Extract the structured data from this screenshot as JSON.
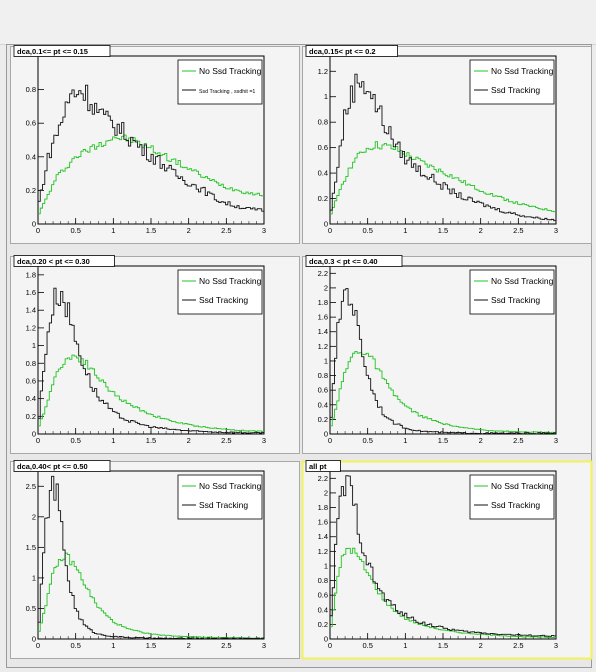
{
  "colors": {
    "green": "#22c422",
    "black": "#111111",
    "highlight": "#f2f25a"
  },
  "chart_data": [
    {
      "type": "line",
      "title": "dca,0.1<= pt <= 0.15",
      "xlim": [
        0,
        3
      ],
      "ylim": [
        0,
        1.0
      ],
      "xticks": [
        "0",
        "0.5",
        "1",
        "1.5",
        "2",
        "2.5",
        "3"
      ],
      "yticks": [
        "0.2",
        "0.4",
        "0.6",
        "0.8"
      ],
      "ytick_values": [
        0.2,
        0.4,
        0.6,
        0.8
      ],
      "legend": {
        "position": "top-right"
      },
      "series": [
        {
          "name": "No Ssd Tracking",
          "color": "green",
          "x": [
            0.0,
            0.25,
            0.5,
            0.75,
            1.0,
            1.25,
            1.5,
            1.75,
            2.0,
            2.25,
            2.5,
            2.75,
            3.0
          ],
          "y": [
            0.05,
            0.28,
            0.4,
            0.46,
            0.52,
            0.5,
            0.45,
            0.39,
            0.33,
            0.27,
            0.22,
            0.19,
            0.17
          ]
        },
        {
          "name": "Ssd Tracking , ssdhit =1",
          "color": "black",
          "x": [
            0.0,
            0.15,
            0.3,
            0.45,
            0.6,
            0.75,
            0.9,
            1.05,
            1.2,
            1.4,
            1.6,
            1.8,
            2.0,
            2.2,
            2.4,
            2.6,
            2.8,
            3.0
          ],
          "y": [
            0.1,
            0.42,
            0.6,
            0.78,
            0.8,
            0.7,
            0.62,
            0.58,
            0.52,
            0.44,
            0.38,
            0.3,
            0.25,
            0.2,
            0.14,
            0.11,
            0.09,
            0.08
          ]
        }
      ]
    },
    {
      "type": "line",
      "title": "dca,0.15< pt <= 0.2",
      "xlim": [
        0,
        3
      ],
      "ylim": [
        0,
        1.32
      ],
      "xticks": [
        "0",
        "0.5",
        "1",
        "1.5",
        "2",
        "2.5",
        "3"
      ],
      "yticks": [
        "0.2",
        "0.4",
        "0.6",
        "0.8",
        "1",
        "1.2"
      ],
      "ytick_values": [
        0.2,
        0.4,
        0.6,
        0.8,
        1.0,
        1.2
      ],
      "legend": {
        "position": "top-right"
      },
      "series": [
        {
          "name": "No Ssd Tracking",
          "color": "green",
          "x": [
            0.0,
            0.15,
            0.3,
            0.45,
            0.6,
            0.75,
            0.9,
            1.1,
            1.3,
            1.6,
            1.9,
            2.2,
            2.5,
            2.8,
            3.0
          ],
          "y": [
            0.05,
            0.3,
            0.48,
            0.58,
            0.62,
            0.61,
            0.58,
            0.52,
            0.46,
            0.38,
            0.29,
            0.22,
            0.16,
            0.12,
            0.1
          ]
        },
        {
          "name": "Ssd Tracking",
          "color": "black",
          "x": [
            0.0,
            0.1,
            0.2,
            0.3,
            0.4,
            0.5,
            0.6,
            0.7,
            0.8,
            0.9,
            1.0,
            1.2,
            1.4,
            1.6,
            1.8,
            2.0,
            2.3,
            2.6,
            3.0
          ],
          "y": [
            0.05,
            0.45,
            0.85,
            1.05,
            1.15,
            1.08,
            0.95,
            0.82,
            0.7,
            0.6,
            0.52,
            0.42,
            0.34,
            0.26,
            0.2,
            0.16,
            0.1,
            0.06,
            0.03
          ]
        }
      ]
    },
    {
      "type": "line",
      "title": "dca,0.20 < pt <= 0.30",
      "xlim": [
        0,
        3
      ],
      "ylim": [
        0,
        1.9
      ],
      "xticks": [
        "0",
        "0.5",
        "1",
        "1.5",
        "2",
        "2.5",
        "3"
      ],
      "yticks": [
        "0.2",
        "0.4",
        "0.6",
        "0.8",
        "1",
        "1.2",
        "1.4",
        "1.6",
        "1.8"
      ],
      "ytick_values": [
        0.2,
        0.4,
        0.6,
        0.8,
        1.0,
        1.2,
        1.4,
        1.6,
        1.8
      ],
      "legend": {
        "position": "top-right"
      },
      "series": [
        {
          "name": "No Ssd Tracking",
          "color": "green",
          "x": [
            0.0,
            0.1,
            0.2,
            0.3,
            0.4,
            0.5,
            0.6,
            0.7,
            0.8,
            1.0,
            1.2,
            1.5,
            1.8,
            2.1,
            2.4,
            2.7,
            3.0
          ],
          "y": [
            0.05,
            0.3,
            0.58,
            0.78,
            0.86,
            0.88,
            0.84,
            0.75,
            0.64,
            0.46,
            0.34,
            0.22,
            0.14,
            0.09,
            0.06,
            0.04,
            0.03
          ]
        },
        {
          "name": "Ssd Tracking",
          "color": "black",
          "x": [
            0.0,
            0.05,
            0.1,
            0.15,
            0.2,
            0.25,
            0.3,
            0.35,
            0.4,
            0.5,
            0.6,
            0.7,
            0.8,
            1.0,
            1.2,
            1.5,
            1.8,
            2.1,
            2.5,
            3.0
          ],
          "y": [
            0.05,
            0.5,
            0.95,
            1.25,
            1.45,
            1.58,
            1.6,
            1.52,
            1.38,
            1.08,
            0.8,
            0.58,
            0.42,
            0.24,
            0.15,
            0.08,
            0.05,
            0.03,
            0.02,
            0.01
          ]
        }
      ]
    },
    {
      "type": "line",
      "title": "dca,0.3 < pt <= 0.40",
      "xlim": [
        0,
        3
      ],
      "ylim": [
        0,
        2.3
      ],
      "xticks": [
        "0",
        "0.5",
        "1",
        "1.5",
        "2",
        "2.5",
        "3"
      ],
      "yticks": [
        "0.2",
        "0.4",
        "0.6",
        "0.8",
        "1",
        "1.2",
        "1.4",
        "1.6",
        "1.8",
        "2",
        "2.2"
      ],
      "ytick_values": [
        0.2,
        0.4,
        0.6,
        0.8,
        1.0,
        1.2,
        1.4,
        1.6,
        1.8,
        2.0,
        2.2
      ],
      "legend": {
        "position": "top-right"
      },
      "series": [
        {
          "name": "No Ssd Tracking",
          "color": "green",
          "x": [
            0.0,
            0.1,
            0.2,
            0.3,
            0.4,
            0.5,
            0.6,
            0.7,
            0.8,
            1.0,
            1.2,
            1.5,
            1.8,
            2.1,
            2.5,
            3.0
          ],
          "y": [
            0.05,
            0.45,
            0.85,
            1.08,
            1.15,
            1.1,
            0.96,
            0.78,
            0.6,
            0.38,
            0.25,
            0.14,
            0.08,
            0.05,
            0.03,
            0.02
          ]
        },
        {
          "name": "Ssd Tracking",
          "color": "black",
          "x": [
            0.0,
            0.05,
            0.1,
            0.15,
            0.2,
            0.25,
            0.3,
            0.35,
            0.4,
            0.5,
            0.6,
            0.7,
            0.8,
            1.0,
            1.2,
            1.5,
            2.0,
            2.5,
            3.0
          ],
          "y": [
            0.05,
            0.7,
            1.35,
            1.78,
            1.98,
            1.95,
            1.8,
            1.55,
            1.28,
            0.82,
            0.5,
            0.3,
            0.18,
            0.08,
            0.04,
            0.02,
            0.01,
            0.01,
            0.01
          ]
        }
      ]
    },
    {
      "type": "line",
      "title": "dca,0.40< pt <= 0.50",
      "xlim": [
        0,
        3
      ],
      "ylim": [
        0,
        2.75
      ],
      "xticks": [
        "0",
        "0.5",
        "1",
        "1.5",
        "2",
        "2.5",
        "3"
      ],
      "yticks": [
        "0.5",
        "1",
        "1.5",
        "2",
        "2.5"
      ],
      "ytick_values": [
        0.5,
        1.0,
        1.5,
        2.0,
        2.5
      ],
      "legend": {
        "position": "top-right"
      },
      "series": [
        {
          "name": "No Ssd Tracking",
          "color": "green",
          "x": [
            0.0,
            0.1,
            0.2,
            0.3,
            0.35,
            0.4,
            0.5,
            0.6,
            0.7,
            0.8,
            1.0,
            1.2,
            1.5,
            1.8,
            2.2,
            2.6,
            3.0
          ],
          "y": [
            0.05,
            0.55,
            1.05,
            1.3,
            1.36,
            1.33,
            1.18,
            0.95,
            0.72,
            0.52,
            0.28,
            0.16,
            0.08,
            0.05,
            0.03,
            0.02,
            0.01
          ]
        },
        {
          "name": "Ssd Tracking",
          "color": "black",
          "x": [
            0.0,
            0.05,
            0.1,
            0.15,
            0.2,
            0.25,
            0.3,
            0.35,
            0.4,
            0.5,
            0.6,
            0.7,
            0.8,
            1.0,
            1.3,
            1.6,
            2.0,
            2.5,
            3.0
          ],
          "y": [
            0.05,
            0.9,
            1.8,
            2.35,
            2.5,
            2.35,
            1.95,
            1.45,
            1.0,
            0.5,
            0.25,
            0.14,
            0.08,
            0.04,
            0.02,
            0.01,
            0.01,
            0.01,
            0.01
          ]
        }
      ]
    },
    {
      "type": "line",
      "title": "all pt",
      "xlim": [
        0,
        3
      ],
      "ylim": [
        0,
        2.3
      ],
      "xticks": [
        "0",
        "0.5",
        "1",
        "1.5",
        "2",
        "2.5",
        "3"
      ],
      "yticks": [
        "0.2",
        "0.4",
        "0.6",
        "0.8",
        "1",
        "1.2",
        "1.4",
        "1.6",
        "1.8",
        "2",
        "2.2"
      ],
      "ytick_values": [
        0.2,
        0.4,
        0.6,
        0.8,
        1.0,
        1.2,
        1.4,
        1.6,
        1.8,
        2.0,
        2.2
      ],
      "legend": {
        "position": "top-right"
      },
      "highlighted": true,
      "series": [
        {
          "name": "No Ssd Tracking",
          "color": "green",
          "x": [
            0.0,
            0.05,
            0.1,
            0.15,
            0.2,
            0.25,
            0.3,
            0.4,
            0.5,
            0.6,
            0.7,
            0.8,
            1.0,
            1.2,
            1.5,
            1.8,
            2.2,
            2.6,
            3.0
          ],
          "y": [
            0.05,
            0.45,
            0.8,
            1.05,
            1.2,
            1.25,
            1.22,
            1.08,
            0.9,
            0.72,
            0.56,
            0.44,
            0.28,
            0.2,
            0.12,
            0.08,
            0.05,
            0.03,
            0.02
          ]
        },
        {
          "name": "Ssd Tracking",
          "color": "black",
          "x": [
            0.0,
            0.05,
            0.1,
            0.15,
            0.2,
            0.25,
            0.3,
            0.35,
            0.4,
            0.5,
            0.6,
            0.7,
            0.8,
            1.0,
            1.2,
            1.5,
            1.8,
            2.2,
            2.6,
            3.0
          ],
          "y": [
            0.05,
            0.85,
            1.55,
            1.95,
            2.12,
            2.08,
            1.92,
            1.7,
            1.45,
            1.05,
            0.78,
            0.6,
            0.48,
            0.32,
            0.23,
            0.15,
            0.1,
            0.07,
            0.05,
            0.04
          ]
        }
      ]
    }
  ]
}
